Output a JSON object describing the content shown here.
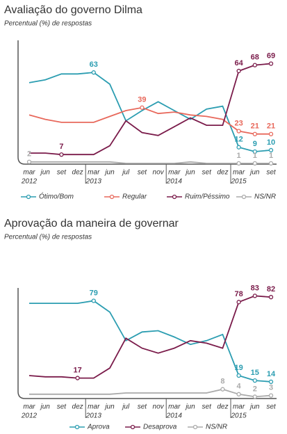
{
  "chart_data": [
    {
      "type": "line",
      "title": "Avaliação do governo Dilma",
      "subtitle": "Percentual (%) de respostas",
      "categories": [
        "mar",
        "jun",
        "set",
        "dez",
        "mar",
        "jun",
        "jul",
        "set",
        "nov",
        "mar",
        "jun",
        "set",
        "dez",
        "mar",
        "jun",
        "set"
      ],
      "years": [
        "2012",
        null,
        null,
        null,
        "2013",
        null,
        null,
        null,
        null,
        "2014",
        null,
        null,
        null,
        "2015",
        null,
        null
      ],
      "ylim": [
        0,
        83
      ],
      "series": [
        {
          "name": "Ótimo/Bom",
          "color": "#2b9db1",
          "values": [
            56,
            58,
            62,
            62,
            63,
            55,
            30,
            37,
            43,
            37,
            31,
            38,
            40,
            12,
            9,
            10
          ],
          "value_labels": [
            null,
            null,
            null,
            null,
            63,
            null,
            null,
            null,
            null,
            null,
            null,
            null,
            null,
            12,
            9,
            10
          ]
        },
        {
          "name": "Regular",
          "color": "#e8685b",
          "values": [
            34,
            31,
            29,
            29,
            29,
            33,
            37,
            39,
            35,
            36,
            34,
            33,
            31,
            23,
            21,
            21
          ],
          "value_labels": [
            null,
            null,
            null,
            null,
            null,
            null,
            null,
            39,
            null,
            null,
            null,
            null,
            null,
            23,
            21,
            21
          ]
        },
        {
          "name": "Ruim/Péssimo",
          "color": "#7a1b4a",
          "values": [
            8,
            8,
            7,
            7,
            7,
            13,
            30,
            22,
            20,
            26,
            32,
            27,
            27,
            64,
            68,
            69
          ],
          "value_labels": [
            null,
            null,
            7,
            null,
            null,
            null,
            null,
            null,
            null,
            null,
            null,
            null,
            null,
            64,
            68,
            69
          ]
        },
        {
          "name": "NS/NR",
          "color": "#aaaaaa",
          "values": [
            2,
            2,
            2,
            2,
            2,
            2,
            1,
            1,
            1,
            1,
            2,
            1,
            1,
            1,
            1,
            1
          ],
          "value_labels": [
            2,
            null,
            null,
            null,
            null,
            null,
            null,
            null,
            null,
            null,
            null,
            null,
            null,
            1,
            1,
            1
          ]
        }
      ]
    },
    {
      "type": "line",
      "title": "Aprovação da maneira de governar",
      "subtitle": "Percentual (%) de respostas",
      "categories": [
        "mar",
        "jun",
        "set",
        "dez",
        "mar",
        "jun",
        "jul",
        "set",
        "nov",
        "mar",
        "jun",
        "set",
        "dez",
        "mar",
        "jun",
        "set"
      ],
      "years": [
        "2012",
        null,
        null,
        null,
        "2013",
        null,
        null,
        null,
        null,
        "2014",
        null,
        null,
        null,
        "2015",
        null,
        null
      ],
      "ylim": [
        0,
        86
      ],
      "series": [
        {
          "name": "Aprova",
          "color": "#2b9db1",
          "values": [
            77,
            77,
            77,
            77,
            79,
            70,
            47,
            54,
            55,
            50,
            44,
            47,
            52,
            19,
            15,
            14
          ],
          "value_labels": [
            null,
            null,
            null,
            null,
            79,
            null,
            null,
            null,
            null,
            null,
            null,
            null,
            null,
            19,
            15,
            14
          ]
        },
        {
          "name": "Desaprova",
          "color": "#7a1b4a",
          "values": [
            19,
            18,
            18,
            17,
            17,
            25,
            49,
            41,
            37,
            41,
            47,
            45,
            41,
            78,
            83,
            82
          ],
          "value_labels": [
            null,
            null,
            null,
            17,
            null,
            null,
            null,
            null,
            null,
            null,
            null,
            null,
            null,
            78,
            83,
            82
          ]
        },
        {
          "name": "NS/NR",
          "color": "#aaaaaa",
          "values": [
            4,
            4,
            4,
            4,
            4,
            4,
            5,
            5,
            5,
            5,
            5,
            5,
            8,
            4,
            2,
            3
          ],
          "value_labels": [
            null,
            null,
            null,
            null,
            null,
            null,
            null,
            null,
            null,
            null,
            null,
            null,
            8,
            4,
            2,
            3
          ]
        }
      ]
    }
  ]
}
